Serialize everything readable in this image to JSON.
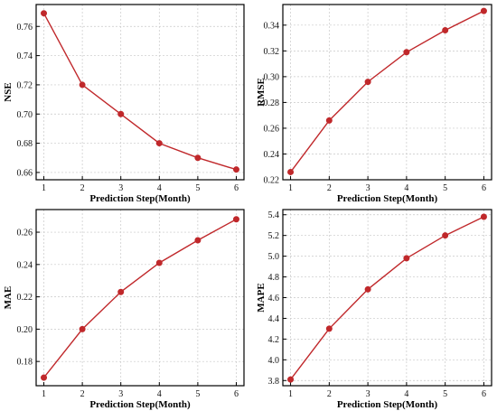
{
  "colors": {
    "series": "#c0282b",
    "grid": "#c8c8c8",
    "axis": "#000000"
  },
  "chart_data": [
    {
      "type": "line",
      "x": [
        1,
        2,
        3,
        4,
        5,
        6
      ],
      "y": [
        0.769,
        0.72,
        0.7,
        0.68,
        0.67,
        0.662
      ],
      "xlabel": "Prediction Step(Month)",
      "ylabel": "NSE",
      "xlim": [
        0.8,
        6.2
      ],
      "ylim": [
        0.655,
        0.775
      ],
      "xticks": [
        "1",
        "2",
        "3",
        "4",
        "5",
        "6"
      ],
      "yticks": [
        "0.66",
        "0.68",
        "0.70",
        "0.72",
        "0.74",
        "0.76"
      ],
      "grid": true
    },
    {
      "type": "line",
      "x": [
        1,
        2,
        3,
        4,
        5,
        6
      ],
      "y": [
        0.226,
        0.266,
        0.296,
        0.319,
        0.336,
        0.351
      ],
      "xlabel": "Prediction Step(Month)",
      "ylabel": "RMSE",
      "xlim": [
        0.8,
        6.2
      ],
      "ylim": [
        0.22,
        0.356
      ],
      "xticks": [
        "1",
        "2",
        "3",
        "4",
        "5",
        "6"
      ],
      "yticks": [
        "0.22",
        "0.24",
        "0.26",
        "0.28",
        "0.30",
        "0.32",
        "0.34"
      ],
      "grid": true
    },
    {
      "type": "line",
      "x": [
        1,
        2,
        3,
        4,
        5,
        6
      ],
      "y": [
        0.17,
        0.2,
        0.223,
        0.241,
        0.255,
        0.268
      ],
      "xlabel": "Prediction Step(Month)",
      "ylabel": "MAE",
      "xlim": [
        0.8,
        6.2
      ],
      "ylim": [
        0.165,
        0.274
      ],
      "xticks": [
        "1",
        "2",
        "3",
        "4",
        "5",
        "6"
      ],
      "yticks": [
        "0.18",
        "0.20",
        "0.22",
        "0.24",
        "0.26"
      ],
      "grid": true
    },
    {
      "type": "line",
      "x": [
        1,
        2,
        3,
        4,
        5,
        6
      ],
      "y": [
        3.81,
        4.3,
        4.68,
        4.98,
        5.2,
        5.38
      ],
      "xlabel": "Prediction Step(Month)",
      "ylabel": "MAPE",
      "xlim": [
        0.8,
        6.2
      ],
      "ylim": [
        3.75,
        5.45
      ],
      "xticks": [
        "1",
        "2",
        "3",
        "4",
        "5",
        "6"
      ],
      "yticks": [
        "3.8",
        "4.0",
        "4.2",
        "4.4",
        "4.6",
        "4.8",
        "5.0",
        "5.2",
        "5.4"
      ],
      "grid": true
    }
  ]
}
